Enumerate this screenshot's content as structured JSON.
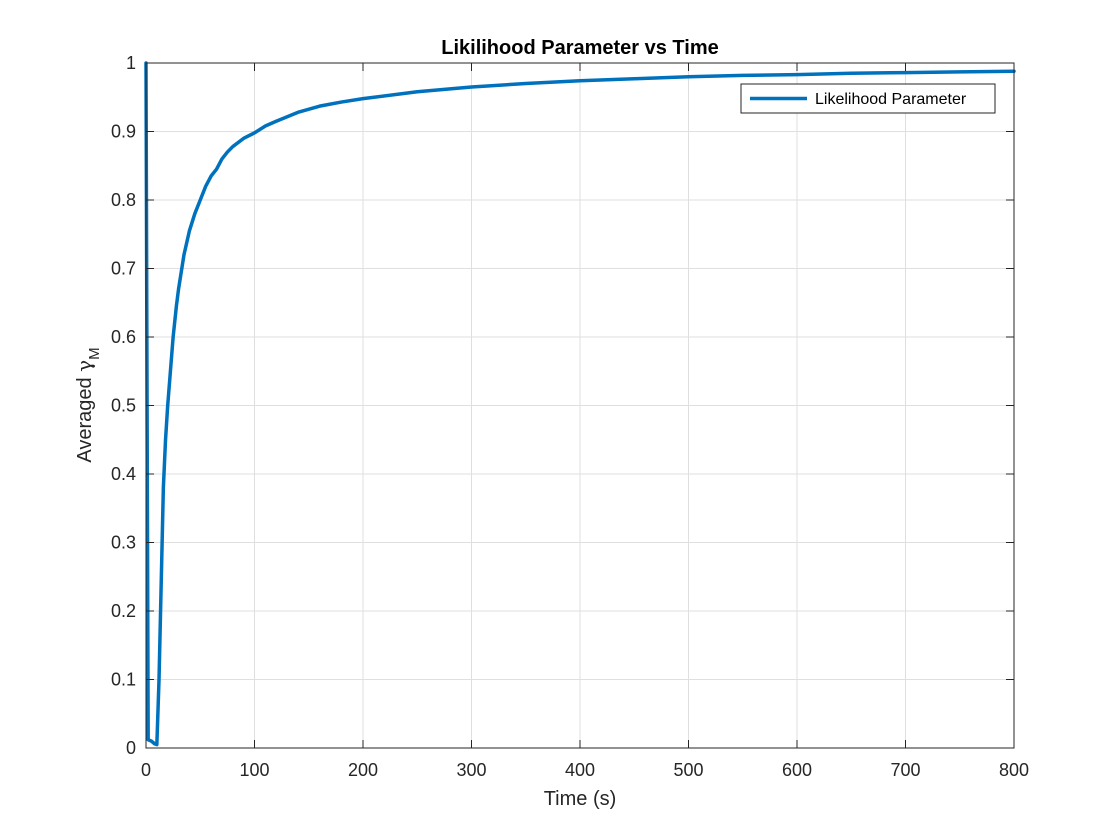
{
  "chart_data": {
    "type": "line",
    "title": "Likilihood Parameter vs Time",
    "xlabel": "Time (s)",
    "ylabel_text": "Averaged ",
    "ylabel_symbol": "γ",
    "ylabel_subscript": "M",
    "xlim": [
      0,
      800
    ],
    "ylim": [
      0,
      1
    ],
    "xticks": [
      0,
      100,
      200,
      300,
      400,
      500,
      600,
      700,
      800
    ],
    "yticks": [
      0,
      0.1,
      0.2,
      0.3,
      0.4,
      0.5,
      0.6,
      0.7,
      0.8,
      0.9,
      1
    ],
    "xtick_labels": [
      "0",
      "100",
      "200",
      "300",
      "400",
      "500",
      "600",
      "700",
      "800"
    ],
    "ytick_labels": [
      "0",
      "0.1",
      "0.2",
      "0.3",
      "0.4",
      "0.5",
      "0.6",
      "0.7",
      "0.8",
      "0.9",
      "1"
    ],
    "grid": true,
    "legend_position": "top-right",
    "series": [
      {
        "name": "Likelihood Parameter",
        "color": "#0072BD",
        "x": [
          0,
          1,
          2,
          5,
          8,
          10,
          12,
          14,
          16,
          18,
          20,
          22,
          25,
          28,
          30,
          35,
          40,
          45,
          50,
          55,
          60,
          65,
          70,
          75,
          80,
          90,
          100,
          110,
          120,
          140,
          160,
          180,
          200,
          250,
          300,
          350,
          400,
          450,
          500,
          550,
          600,
          650,
          700,
          750,
          800
        ],
        "y": [
          1.0,
          0.5,
          0.012,
          0.01,
          0.006,
          0.005,
          0.1,
          0.24,
          0.38,
          0.45,
          0.5,
          0.54,
          0.6,
          0.645,
          0.67,
          0.72,
          0.755,
          0.78,
          0.8,
          0.82,
          0.835,
          0.845,
          0.86,
          0.87,
          0.878,
          0.89,
          0.898,
          0.908,
          0.915,
          0.928,
          0.937,
          0.943,
          0.948,
          0.958,
          0.965,
          0.97,
          0.974,
          0.977,
          0.98,
          0.982,
          0.983,
          0.985,
          0.986,
          0.987,
          0.988
        ]
      }
    ]
  }
}
